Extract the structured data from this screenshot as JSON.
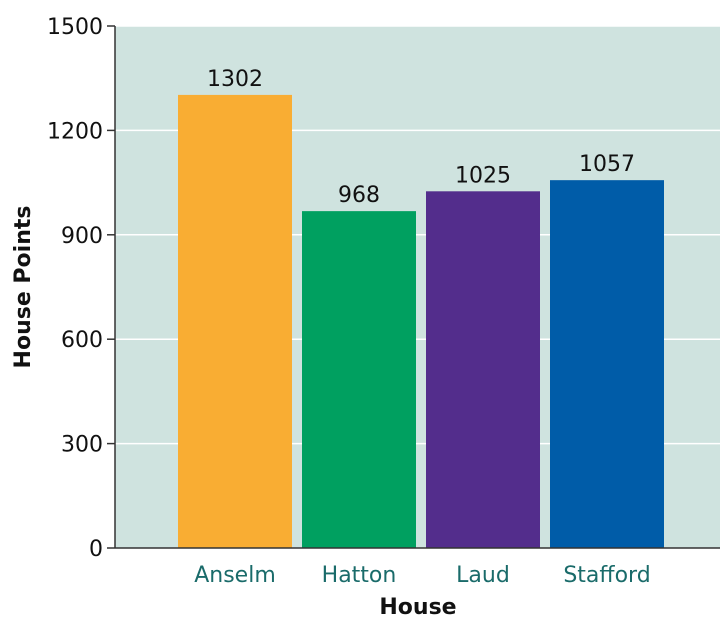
{
  "chart_data": {
    "type": "bar",
    "title": "",
    "xlabel": "House",
    "ylabel": "House Points",
    "categories": [
      "Anselm",
      "Hatton",
      "Laud",
      "Stafford"
    ],
    "values": [
      1302,
      968,
      1025,
      1057
    ],
    "data_labels": [
      "1302",
      "968",
      "1025",
      "1057"
    ],
    "ylim": [
      0,
      1500
    ],
    "yticks": [
      0,
      300,
      600,
      900,
      1200,
      1500
    ],
    "ytick_labels": [
      "0",
      "300",
      "600",
      "900",
      "1200",
      "1500"
    ],
    "grid": true,
    "legend": "none",
    "colors": {
      "plot_background": "#cfe3df",
      "gridline": "#ffffff",
      "axis": "#333333",
      "category_label": "#1a6b6a",
      "bars": [
        "#f9ad33",
        "#00a060",
        "#532d8c",
        "#005ca8"
      ]
    }
  }
}
